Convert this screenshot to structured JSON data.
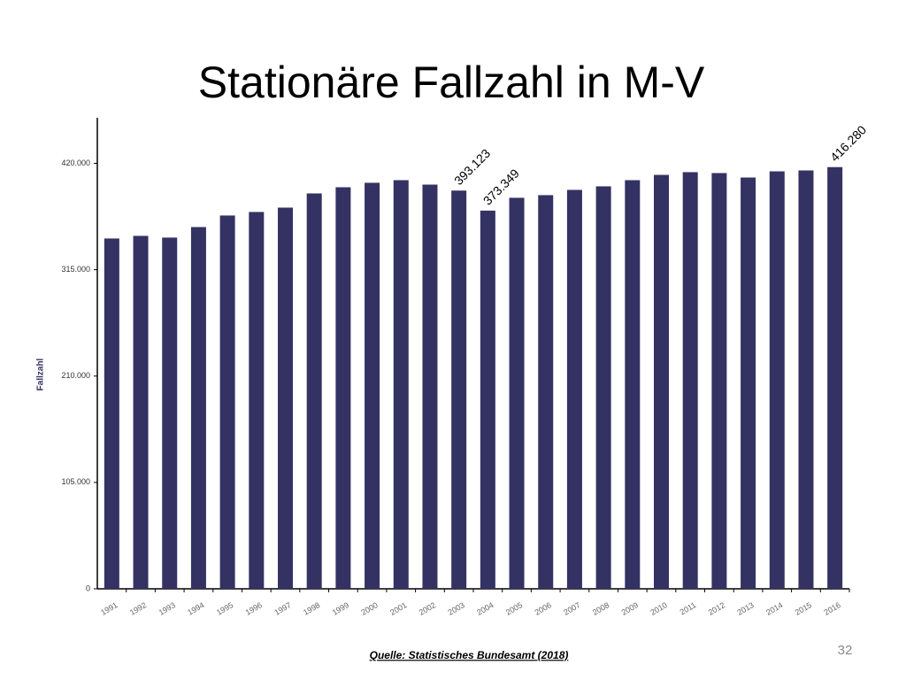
{
  "chart_data": {
    "type": "bar",
    "title": "Stationäre Fallzahl in M-V",
    "y_label": "Fallzahl",
    "source": "Quelle: Statistisches Bundesamt (2018)",
    "page_number": "32",
    "categories": [
      "1991",
      "1992",
      "1993",
      "1994",
      "1995",
      "1996",
      "1997",
      "1998",
      "1999",
      "2000",
      "2001",
      "2002",
      "2003",
      "2004",
      "2005",
      "2006",
      "2007",
      "2008",
      "2009",
      "2010",
      "2011",
      "2012",
      "2013",
      "2014",
      "2015",
      "2016"
    ],
    "values": [
      345800,
      348400,
      346700,
      357100,
      368500,
      372000,
      376300,
      390300,
      396400,
      400800,
      403400,
      399000,
      393123,
      373349,
      386000,
      388600,
      393800,
      397300,
      403400,
      408600,
      411300,
      410400,
      406000,
      412100,
      413000,
      416280
    ],
    "value_labels": [
      null,
      null,
      null,
      null,
      null,
      null,
      null,
      null,
      null,
      null,
      null,
      null,
      "393.123",
      "373.349",
      null,
      null,
      null,
      null,
      null,
      null,
      null,
      null,
      null,
      null,
      null,
      "416.280"
    ],
    "color": "#343263",
    "ylim": [
      0,
      465000
    ],
    "yticks": [
      0,
      {
        "value": 105000,
        "label": "105.000"
      },
      {
        "value": 210000,
        "label": "210.000"
      },
      {
        "value": 315000,
        "label": "315.000"
      },
      {
        "value": 420000,
        "label": "420.000"
      }
    ]
  }
}
